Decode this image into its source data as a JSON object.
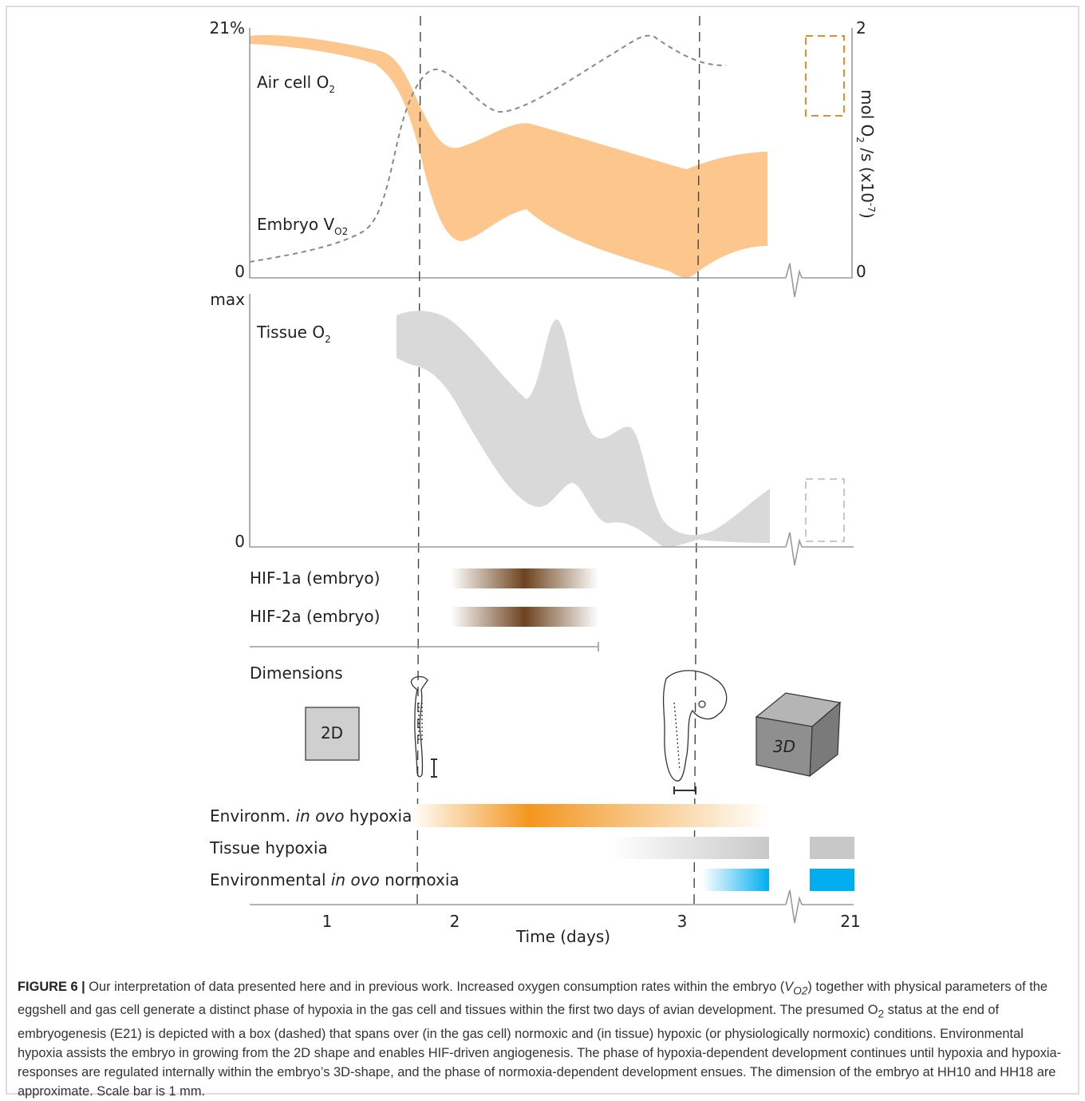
{
  "top_panel": {
    "left_ticks": [
      "21%",
      "0"
    ],
    "right_ticks": [
      "2",
      "0"
    ],
    "right_axis_label": {
      "a": "mol O",
      "a_sub": "2",
      "b": " /s (x10",
      "b_sup": "-7",
      "c": ")"
    },
    "air_cell_label": {
      "text": "Air cell O",
      "sub": "2"
    },
    "embryo_label": {
      "text": "Embryo V",
      "sub": "O2"
    }
  },
  "middle_panel": {
    "ticks": [
      "max",
      "0"
    ],
    "tissue_label": {
      "text": "Tissue O",
      "sub": "2"
    }
  },
  "hif_rows": [
    "HIF-1a (embryo)",
    "HIF-2a (embryo)"
  ],
  "dimensions": {
    "title": "Dimensions",
    "box_2d": "2D",
    "box_3d": "3D"
  },
  "bars": {
    "environm_hypoxia": {
      "a": "Environm. ",
      "b": "in ovo",
      "c": " hypoxia"
    },
    "tissue_hypoxia": "Tissue hypoxia",
    "normoxia": {
      "a": "Environmental ",
      "b": "in ovo",
      "c": " normoxia"
    }
  },
  "x_axis": {
    "ticks": [
      "1",
      "2",
      "3",
      "21"
    ],
    "label": "Time (days)"
  },
  "caption": {
    "label": "FIGURE 6 |",
    "t1": " Our interpretation of data presented here and in previous work. Increased oxygen consumption rates within the embryo (",
    "v": "V",
    "v_sub": "O2",
    "t2": ") together with physical parameters of the eggshell and gas cell generate a distinct phase of hypoxia in the gas cell and tissues within the first two days of avian development. The presumed ",
    "o": "O",
    "o_sub": "2",
    "t3": " status at the end of embryogenesis (E21) is depicted with a box (dashed) that spans over (in the gas cell) normoxic and (in tissue) hypoxic (or physiologically normoxic) conditions. Environmental hypoxia assists the embryo in growing from the 2D shape and enables HIF-driven angiogenesis. The phase of hypoxia-dependent development continues until hypoxia and hypoxia-responses are regulated internally within the embryo’s 3D-shape, and the phase of normoxia-dependent development ensues. The dimension of the embryo at HH10 and HH18 are approximate. Scale bar is 1 mm."
  }
}
